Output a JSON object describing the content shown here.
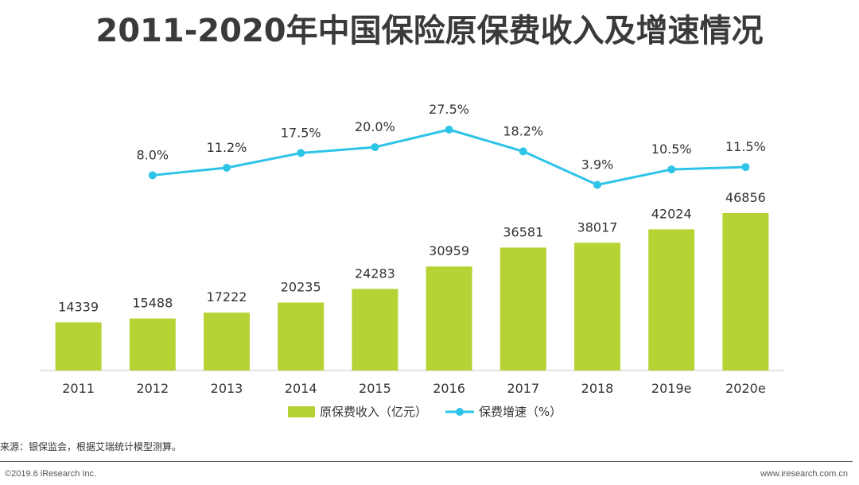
{
  "chart_data": {
    "type": "bar+line",
    "title": "2011-2020年中国保险原保费收入及增速情况",
    "categories": [
      "2011",
      "2012",
      "2013",
      "2014",
      "2015",
      "2016",
      "2017",
      "2018",
      "2019e",
      "2020e"
    ],
    "series": [
      {
        "name": "原保费收入（亿元）",
        "kind": "bar",
        "values": [
          14339,
          15488,
          17222,
          20235,
          24283,
          30959,
          36581,
          38017,
          42024,
          46856
        ],
        "labels": [
          "14339",
          "15488",
          "17222",
          "20235",
          "24283",
          "30959",
          "36581",
          "38017",
          "42024",
          "46856"
        ],
        "color": "#b5d334"
      },
      {
        "name": "保费增速（%）",
        "kind": "line",
        "values": [
          null,
          8.0,
          11.2,
          17.5,
          20.0,
          27.5,
          18.2,
          3.9,
          10.5,
          11.5
        ],
        "labels": [
          "",
          "8.0%",
          "11.2%",
          "17.5%",
          "20.0%",
          "27.5%",
          "18.2%",
          "3.9%",
          "10.5%",
          "11.5%"
        ],
        "color": "#2ec4e8"
      }
    ]
  },
  "footer": {
    "source": "来源：银保监会，根据艾瑞统计模型测算。",
    "copyright": "©2019.6 iResearch Inc.",
    "website": "www.iresearch.com.cn"
  }
}
